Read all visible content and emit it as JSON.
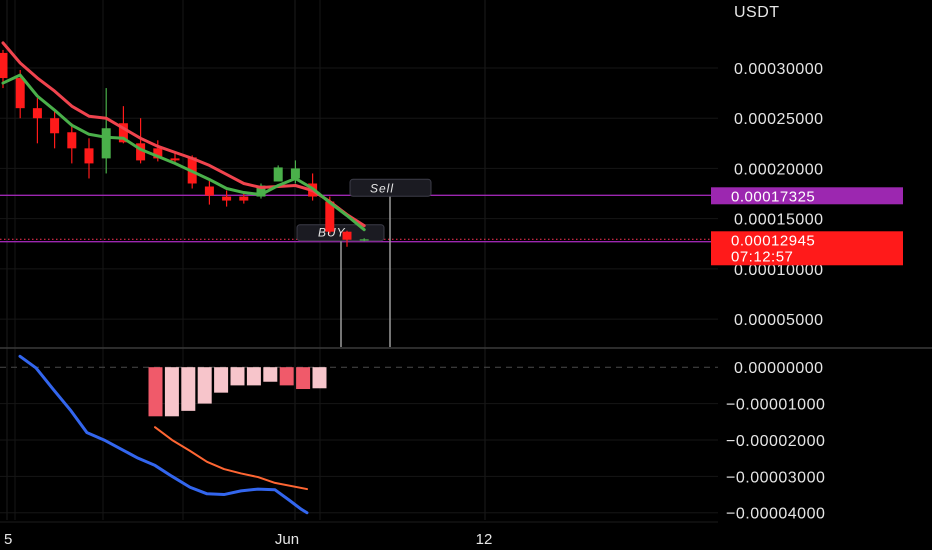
{
  "chart_data": [
    {
      "type": "candlestick",
      "title": "",
      "quote_currency": "USDT",
      "y_tick_labels": [
        "0.00030000",
        "0.00025000",
        "0.00020000",
        "0.00015000",
        "0.00010000",
        "0.00005000"
      ],
      "ylim": [
        2.22e-05,
        0.0003677
      ],
      "x_tick_labels": [
        "5",
        "Jun",
        "12"
      ],
      "candles": [
        {
          "o": 0.000315,
          "h": 0.000318,
          "l": 0.00028,
          "c": 0.00029
        },
        {
          "o": 0.00029,
          "h": 0.000298,
          "l": 0.00025,
          "c": 0.00026
        },
        {
          "o": 0.00026,
          "h": 0.00027,
          "l": 0.000225,
          "c": 0.00025
        },
        {
          "o": 0.00025,
          "h": 0.000258,
          "l": 0.00022,
          "c": 0.000235
        },
        {
          "o": 0.000236,
          "h": 0.000245,
          "l": 0.000205,
          "c": 0.00022
        },
        {
          "o": 0.00022,
          "h": 0.00023,
          "l": 0.00019,
          "c": 0.000205
        },
        {
          "o": 0.00021,
          "h": 0.00028,
          "l": 0.000195,
          "c": 0.00024
        },
        {
          "o": 0.000245,
          "h": 0.000262,
          "l": 0.000225,
          "c": 0.000226
        },
        {
          "o": 0.000225,
          "h": 0.00025,
          "l": 0.000205,
          "c": 0.000208
        },
        {
          "o": 0.00022,
          "h": 0.000228,
          "l": 0.000207,
          "c": 0.00021
        },
        {
          "o": 0.00021,
          "h": 0.000217,
          "l": 0.000204,
          "c": 0.000208
        },
        {
          "o": 0.000211,
          "h": 0.000213,
          "l": 0.00018,
          "c": 0.000185
        },
        {
          "o": 0.000182,
          "h": 0.000188,
          "l": 0.000164,
          "c": 0.000173
        },
        {
          "o": 0.000172,
          "h": 0.000178,
          "l": 0.000162,
          "c": 0.000168
        },
        {
          "o": 0.000172,
          "h": 0.000176,
          "l": 0.000165,
          "c": 0.000168
        },
        {
          "o": 0.000172,
          "h": 0.000185,
          "l": 0.00017,
          "c": 0.000183
        },
        {
          "o": 0.000187,
          "h": 0.000203,
          "l": 0.000187,
          "c": 0.000201
        },
        {
          "o": 0.00019,
          "h": 0.000208,
          "l": 0.000185,
          "c": 0.0002
        },
        {
          "o": 0.000185,
          "h": 0.000195,
          "l": 0.000168,
          "c": 0.000172
        },
        {
          "o": 0.000167,
          "h": 0.000172,
          "l": 0.000135,
          "c": 0.000137
        },
        {
          "o": 0.000137,
          "h": 0.000138,
          "l": 0.000122,
          "c": 0.000129
        },
        {
          "o": 0.000129,
          "h": 0.0001305,
          "l": 0.0001275,
          "c": 0.0001294
        }
      ],
      "series": [
        {
          "name": "",
          "color": "#f0444e",
          "values": [
            0.000325,
            0.000305,
            0.00029,
            0.000277,
            0.000262,
            0.000252,
            0.00025,
            0.00024,
            0.00023,
            0.000222,
            0.000216,
            0.00021,
            0.000203,
            0.000194,
            0.000185,
            0.000181,
            0.000182,
            0.000183,
            0.000178,
            0.000167,
            0.000154,
            0.000143
          ]
        },
        {
          "name": "",
          "color": "#4ab04a",
          "values": [
            0.000285,
            0.000293,
            0.000272,
            0.000258,
            0.000243,
            0.000234,
            0.000231,
            0.00023,
            0.000219,
            0.000212,
            0.000205,
            0.000197,
            0.000189,
            0.00018,
            0.000176,
            0.000174,
            0.000183,
            0.00019,
            0.00018,
            0.000166,
            0.000153,
            0.000139
          ]
        }
      ],
      "price_tags": [
        {
          "label": "0.00017325",
          "value": 0.00017325,
          "color": "#9c27b0"
        },
        {
          "label": "0.00012945",
          "value": 0.00012945,
          "color": "#ff1a1a",
          "sub": "07:12:57"
        },
        {
          "label": "0.00012704",
          "value": 0.00012704,
          "color": "#9c27b0"
        }
      ],
      "annotations": [
        {
          "label": "Sell",
          "color": "#9c9c9c"
        },
        {
          "label": "BUY",
          "color": "#9c9c9c"
        }
      ]
    },
    {
      "type": "bar+line",
      "title": "",
      "y_tick_labels": [
        "0.00000000",
        "−0.00001000",
        "−0.00002000",
        "−0.00003000",
        "−0.00004000"
      ],
      "ylim": [
        -4.2e-05,
        5e-06
      ],
      "histogram": [
        {
          "value": -1.35e-05,
          "color": "#f05a6a"
        },
        {
          "value": -1.35e-05,
          "color": "#f7c5cb"
        },
        {
          "value": -1.2e-05,
          "color": "#f7c5cb"
        },
        {
          "value": -1e-05,
          "color": "#f7c5cb"
        },
        {
          "value": -7e-06,
          "color": "#f7c5cb"
        },
        {
          "value": -5e-06,
          "color": "#f7c5cb"
        },
        {
          "value": -5e-06,
          "color": "#f7c5cb"
        },
        {
          "value": -4e-06,
          "color": "#f7c5cb"
        },
        {
          "value": -5e-06,
          "color": "#f05a6a"
        },
        {
          "value": -6e-06,
          "color": "#f05a6a"
        },
        {
          "value": -5.8e-06,
          "color": "#f7c5cb"
        }
      ],
      "series": [
        {
          "name": "",
          "color": "#3366ee",
          "values": [
            3e-06,
            -2e-07,
            -6e-06,
            -1.2e-05,
            -1.8e-05,
            -2e-05,
            -2.25e-05,
            -2.5e-05,
            -2.7e-05,
            -3e-05,
            -3.3e-05,
            -3.48e-05,
            -3.5e-05,
            -3.4e-05,
            -3.35e-05,
            -3.37e-05,
            -3.65e-05,
            -3.9e-05,
            -4e-05
          ]
        },
        {
          "name": "",
          "color": "#ff6633",
          "values": [
            -1.65e-05,
            -2e-05,
            -2.3e-05,
            -2.6e-05,
            -2.8e-05,
            -2.92e-05,
            -3.02e-05,
            -3.18e-05,
            -3.35e-05
          ]
        }
      ],
      "zero_line": 0
    }
  ],
  "ui": {
    "currency_label": "USDT",
    "countdown": "07:12:57",
    "x_labels": [
      "5",
      "Jun",
      "12"
    ]
  }
}
